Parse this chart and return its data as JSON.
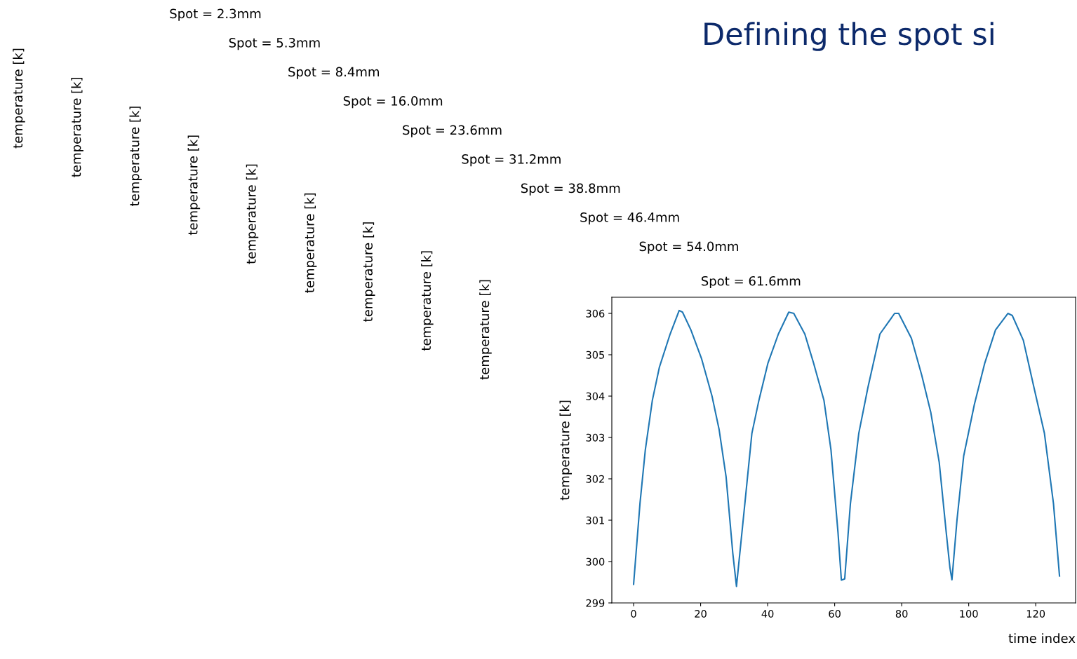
{
  "chart_data": {
    "type": "line",
    "title": "Spot = 61.6mm",
    "xlabel": "time index",
    "ylabel": "temperature [k]",
    "annotations": [
      "Defining the spot si",
      "Spot = 2.3mm",
      "Spot = 5.3mm",
      "Spot = 8.4mm",
      "Spot = 16.0mm",
      "Spot = 23.6mm",
      "Spot = 31.2mm",
      "Spot = 38.8mm",
      "Spot = 46.4mm",
      "Spot = 54.0mm",
      "temperature [k]",
      "temperature [k]",
      "temperature [k]",
      "temperature [k]",
      "temperature [k]",
      "temperature [k]",
      "temperature [k]",
      "temperature [k]",
      "temperature [k]"
    ],
    "xlim": [
      -6.5,
      131.9
    ],
    "ylim": [
      299,
      306.39
    ],
    "xticks": [
      0,
      20,
      40,
      60,
      80,
      100,
      120
    ],
    "yticks": [
      299,
      300,
      301,
      302,
      303,
      304,
      305,
      306
    ],
    "grid": false,
    "legend": false,
    "series": [
      {
        "color": "#1f77b4",
        "x": [
          0,
          1.9,
          3.5,
          5.6,
          7.7,
          10.9,
          13.6,
          14.6,
          17.1,
          20.3,
          23.4,
          25.5,
          27.6,
          29.6,
          30.7,
          33.2,
          35.3,
          37.4,
          40.1,
          43.2,
          46.3,
          47.8,
          51.1,
          53.7,
          56.8,
          58.9,
          61.0,
          62.0,
          63.0,
          64.7,
          67.2,
          69.9,
          73.5,
          77.9,
          79.1,
          82.9,
          86.0,
          88.7,
          91.2,
          93.3,
          94.4,
          95.0,
          96.5,
          98.5,
          101.7,
          104.8,
          108.0,
          111.7,
          113.0,
          116.3,
          119.5,
          122.6,
          125.3,
          127.1
        ],
        "values": [
          299.45,
          301.4,
          302.7,
          303.9,
          304.7,
          305.5,
          306.07,
          306.03,
          305.6,
          304.9,
          304.0,
          303.2,
          302.05,
          300.2,
          299.4,
          301.4,
          303.1,
          303.9,
          304.8,
          305.5,
          306.03,
          306.0,
          305.5,
          304.8,
          303.9,
          302.7,
          300.7,
          299.55,
          299.58,
          301.4,
          303.1,
          304.2,
          305.5,
          306.0,
          306.0,
          305.4,
          304.5,
          303.6,
          302.4,
          300.7,
          299.85,
          299.56,
          301.0,
          302.55,
          303.8,
          304.8,
          305.6,
          306.0,
          305.95,
          305.35,
          304.2,
          303.1,
          301.4,
          299.65
        ]
      }
    ]
  }
}
